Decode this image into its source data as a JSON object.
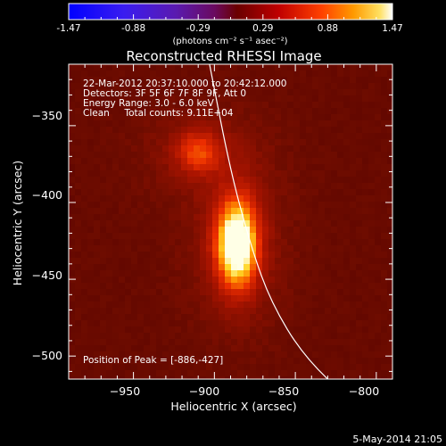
{
  "colorbar": {
    "tick_labels": [
      "-1.47",
      "-0.88",
      "-0.29",
      "0.29",
      "0.88",
      "1.47"
    ],
    "unit_label": "(photons cm⁻² s⁻¹ asec⁻²)"
  },
  "chart_data": {
    "type": "heatmap",
    "title": "Reconstructed RHESSI Image",
    "xlabel": "Heliocentric X (arcsec)",
    "ylabel": "Heliocentric Y (arcsec)",
    "xlim": [
      -990,
      -790
    ],
    "ylim": [
      -515,
      -310
    ],
    "x_ticks": [
      -950,
      -900,
      -850,
      -800
    ],
    "y_ticks": [
      -350,
      -400,
      -450,
      -500
    ],
    "x_tick_labels": [
      "−950",
      "−900",
      "−850",
      "−800"
    ],
    "y_tick_labels": [
      "−350",
      "−400",
      "−450",
      "−500"
    ],
    "color_range": [
      -1.47,
      1.47
    ],
    "sources": [
      {
        "x": -886,
        "y": -427,
        "peak": 1.47
      },
      {
        "x": -910,
        "y": -367,
        "peak": 0.95
      }
    ],
    "limb": [
      [
        -903,
        -310
      ],
      [
        -890,
        -380
      ],
      [
        -877,
        -430
      ],
      [
        -865,
        -465
      ],
      [
        -845,
        -500
      ],
      [
        -815,
        -530
      ]
    ],
    "annotations": [
      "22-Mar-2012 20:37:10.000 to 20:42:12.000",
      "Detectors: 3F 5F 6F 7F 8F 9F, Att 0",
      "Energy Range: 3.0 - 6.0 keV",
      "Clean     Total counts: 9.11E+04"
    ],
    "peak_label": "Position of Peak = [-886,-427]"
  },
  "timestamp": "5-May-2014 21:05"
}
